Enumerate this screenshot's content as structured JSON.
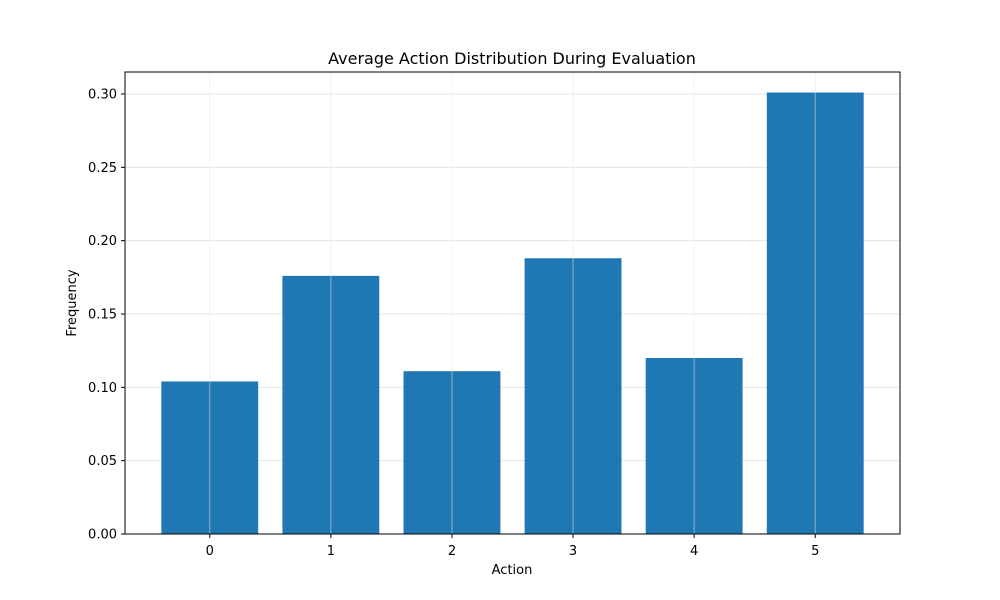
{
  "chart_data": {
    "type": "bar",
    "title": "Average Action Distribution During Evaluation",
    "xlabel": "Action",
    "ylabel": "Frequency",
    "categories": [
      "0",
      "1",
      "2",
      "3",
      "4",
      "5"
    ],
    "values": [
      0.104,
      0.176,
      0.111,
      0.188,
      0.12,
      0.301
    ],
    "ylim": [
      0,
      0.315
    ],
    "yticks": [
      0.0,
      0.05,
      0.1,
      0.15,
      0.2,
      0.25,
      0.3
    ],
    "ytick_labels": [
      "0.00",
      "0.05",
      "0.10",
      "0.15",
      "0.20",
      "0.25",
      "0.30"
    ],
    "grid": true,
    "legend": "none",
    "bar_color": "#1f77b4",
    "grid_color": "#e5e5e5"
  }
}
